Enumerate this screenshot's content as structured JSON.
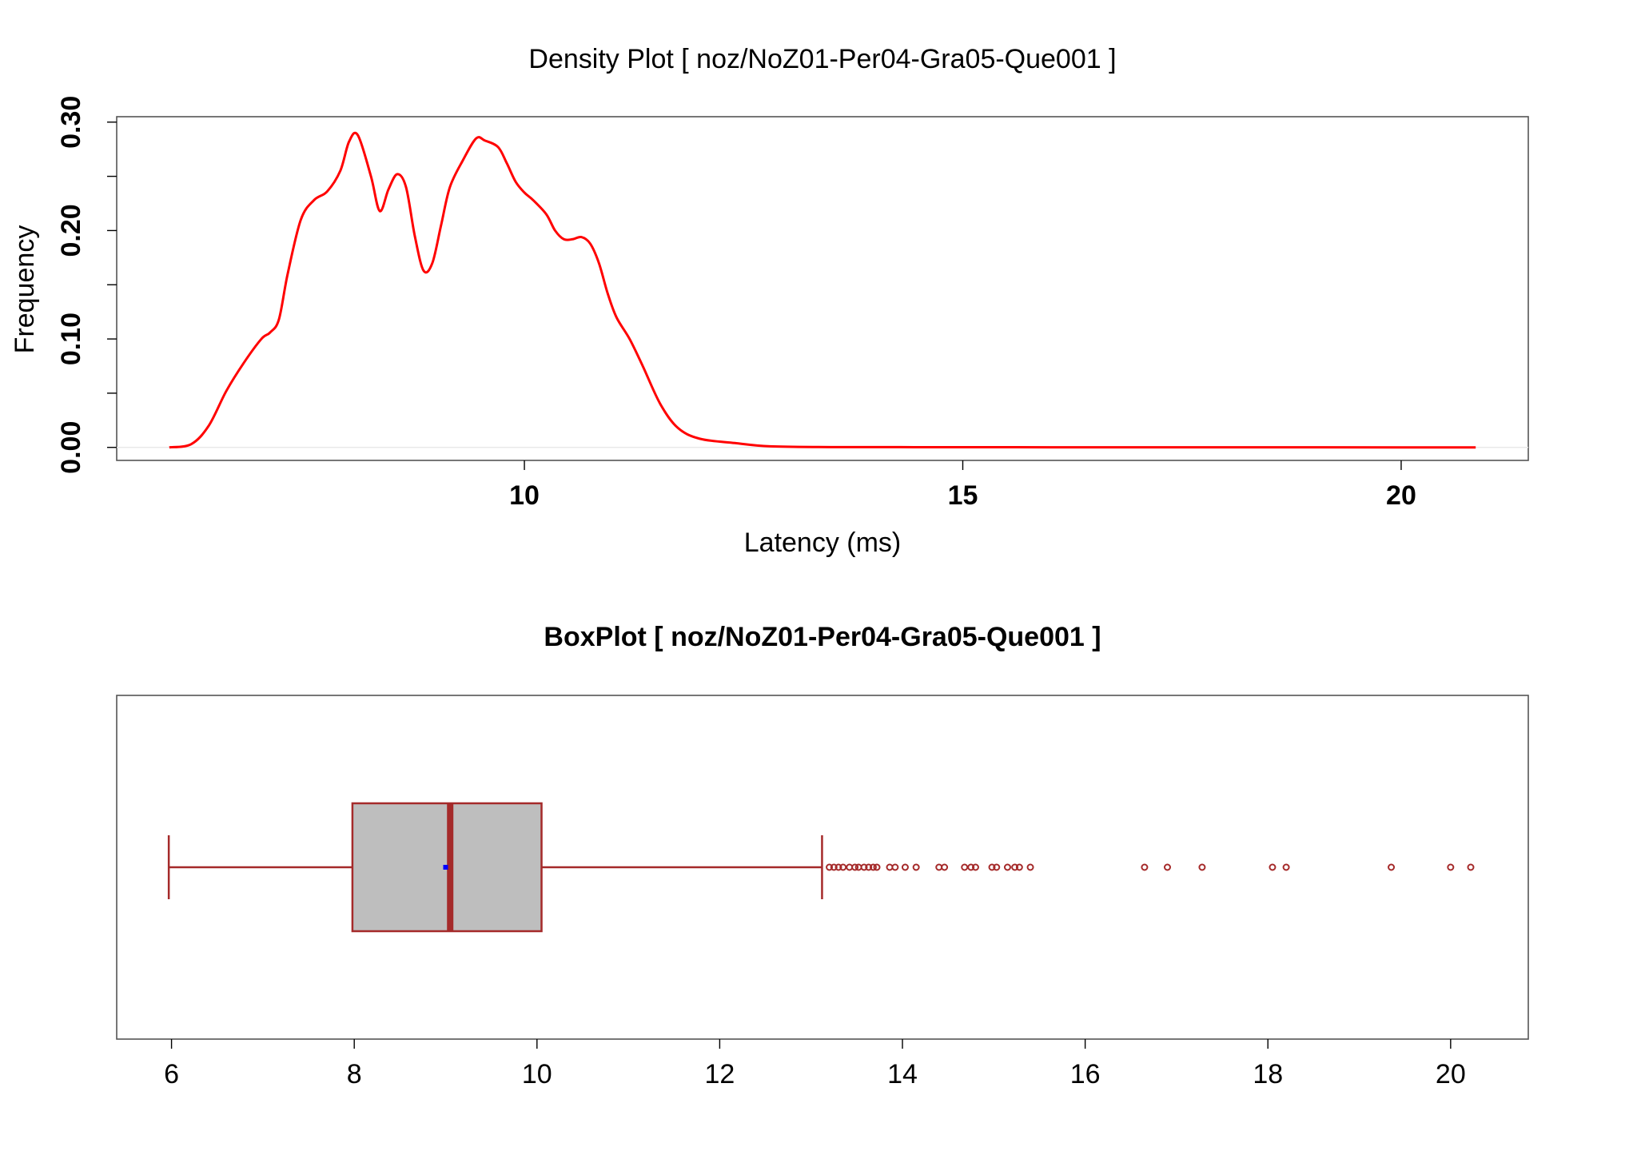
{
  "colors": {
    "density_line": "#ff0000",
    "box_border": "#a52a2a",
    "box_fill": "#bebebe",
    "median": "#a52a2a",
    "mean_marker": "#0000ff",
    "outlier": "#a52a2a",
    "frame": "#555555"
  },
  "chart_data": [
    {
      "type": "line",
      "title": "Density Plot [ noz/NoZ01-Per04-Gra05-Que001 ]",
      "xlabel": "Latency (ms)",
      "ylabel": "Frequency",
      "xlim": [
        5.35,
        21.45
      ],
      "ylim": [
        -0.012,
        0.305
      ],
      "xticks": [
        10,
        15,
        20
      ],
      "xtick_labels": [
        "10",
        "15",
        "20"
      ],
      "yticks": [
        0.0,
        0.05,
        0.1,
        0.15,
        0.2,
        0.25,
        0.3
      ],
      "ytick_labels": [
        "0.00",
        "",
        "0.10",
        "",
        "0.20",
        "",
        "0.30"
      ],
      "grid": false,
      "series": [
        {
          "x": [
            5.95,
            6.2,
            6.4,
            6.6,
            6.8,
            7.0,
            7.1,
            7.2,
            7.3,
            7.45,
            7.6,
            7.75,
            7.9,
            8.0,
            8.1,
            8.25,
            8.35,
            8.45,
            8.55,
            8.65,
            8.75,
            8.85,
            8.95,
            9.05,
            9.15,
            9.3,
            9.45,
            9.55,
            9.7,
            9.8,
            9.9,
            10.0,
            10.1,
            10.25,
            10.35,
            10.45,
            10.55,
            10.65,
            10.75,
            10.85,
            10.95,
            11.05,
            11.2,
            11.35,
            11.55,
            11.75,
            12.0,
            12.4,
            12.8,
            13.5,
            15.0,
            16.0,
            18.0,
            20.0,
            20.85
          ],
          "y": [
            0.0,
            0.003,
            0.02,
            0.052,
            0.078,
            0.1,
            0.106,
            0.118,
            0.16,
            0.21,
            0.228,
            0.236,
            0.255,
            0.282,
            0.288,
            0.25,
            0.218,
            0.238,
            0.252,
            0.24,
            0.195,
            0.163,
            0.17,
            0.205,
            0.24,
            0.265,
            0.285,
            0.283,
            0.277,
            0.262,
            0.245,
            0.235,
            0.228,
            0.215,
            0.2,
            0.192,
            0.192,
            0.194,
            0.188,
            0.17,
            0.142,
            0.12,
            0.1,
            0.075,
            0.04,
            0.018,
            0.008,
            0.004,
            0.001,
            0.0003,
            0.0002,
            0.0001,
            0.0001,
            0.0,
            0.0
          ]
        }
      ]
    },
    {
      "type": "box",
      "title": "BoxPlot [ noz/NoZ01-Per04-Gra05-Que001 ]",
      "xlabel": "",
      "ylabel": "",
      "xlim": [
        5.4,
        20.85
      ],
      "xticks": [
        6,
        8,
        10,
        12,
        14,
        16,
        18,
        20
      ],
      "xtick_labels": [
        "6",
        "8",
        "10",
        "12",
        "14",
        "16",
        "18",
        "20"
      ],
      "grid": false,
      "whisker_low": 5.97,
      "q1": 7.98,
      "median": 9.05,
      "mean": 9.0,
      "q3": 10.05,
      "whisker_high": 13.12,
      "outliers": [
        13.2,
        13.25,
        13.3,
        13.35,
        13.42,
        13.48,
        13.52,
        13.58,
        13.63,
        13.68,
        13.72,
        13.86,
        13.92,
        14.03,
        14.15,
        14.4,
        14.46,
        14.68,
        14.75,
        14.8,
        14.98,
        15.03,
        15.15,
        15.23,
        15.28,
        15.4,
        16.65,
        16.9,
        17.28,
        18.05,
        18.2,
        19.35,
        20.0,
        20.22
      ]
    }
  ]
}
